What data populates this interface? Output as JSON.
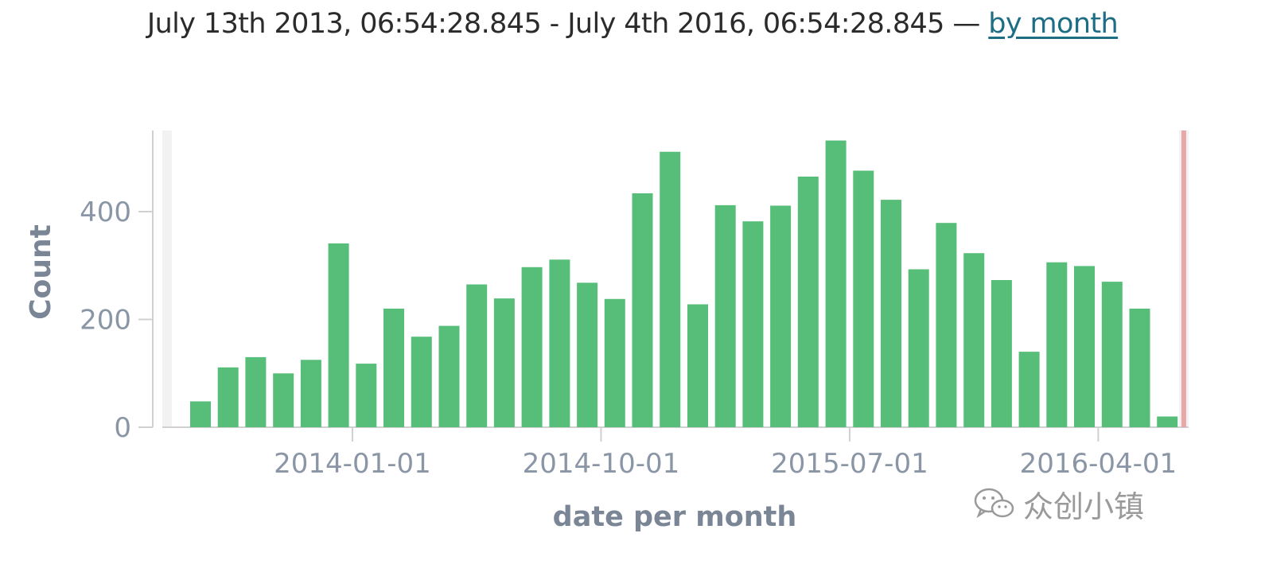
{
  "header": {
    "range_text": "July 13th 2013, 06:54:28.845 - July 4th 2016, 06:54:28.845 — ",
    "interval_link": "by month"
  },
  "watermark": {
    "text": "众创小镇",
    "icon": "wechat-icon"
  },
  "colors": {
    "bar": "#57be7a",
    "marker": "#e89a9a",
    "axis": "#d0d0d0",
    "tick_label": "#8a96a6",
    "band": "#f2f2f2"
  },
  "chart_data": {
    "type": "bar",
    "title": "",
    "xlabel": "date per month",
    "ylabel": "Count",
    "x_ticks": [
      "2014-01-01",
      "2014-10-01",
      "2015-07-01",
      "2016-04-01"
    ],
    "y_ticks": [
      0,
      200,
      400
    ],
    "ylim": [
      0,
      550
    ],
    "grid": false,
    "legend": "none",
    "categories": [
      "2013-07",
      "2013-08",
      "2013-09",
      "2013-10",
      "2013-11",
      "2013-12",
      "2014-01",
      "2014-02",
      "2014-03",
      "2014-04",
      "2014-05",
      "2014-06",
      "2014-07",
      "2014-08",
      "2014-09",
      "2014-10",
      "2014-11",
      "2014-12",
      "2015-01",
      "2015-02",
      "2015-03",
      "2015-04",
      "2015-05",
      "2015-06",
      "2015-07",
      "2015-08",
      "2015-09",
      "2015-10",
      "2015-11",
      "2015-12",
      "2016-01",
      "2016-02",
      "2016-03",
      "2016-04",
      "2016-05",
      "2016-06",
      "2016-07"
    ],
    "values": [
      48,
      111,
      130,
      100,
      125,
      341,
      118,
      220,
      168,
      188,
      265,
      239,
      297,
      311,
      268,
      238,
      434,
      511,
      228,
      412,
      382,
      411,
      465,
      532,
      476,
      422,
      293,
      379,
      323,
      273,
      140,
      306,
      299,
      270,
      220,
      20,
      0
    ],
    "current_time_marker": "2016-07-04"
  }
}
